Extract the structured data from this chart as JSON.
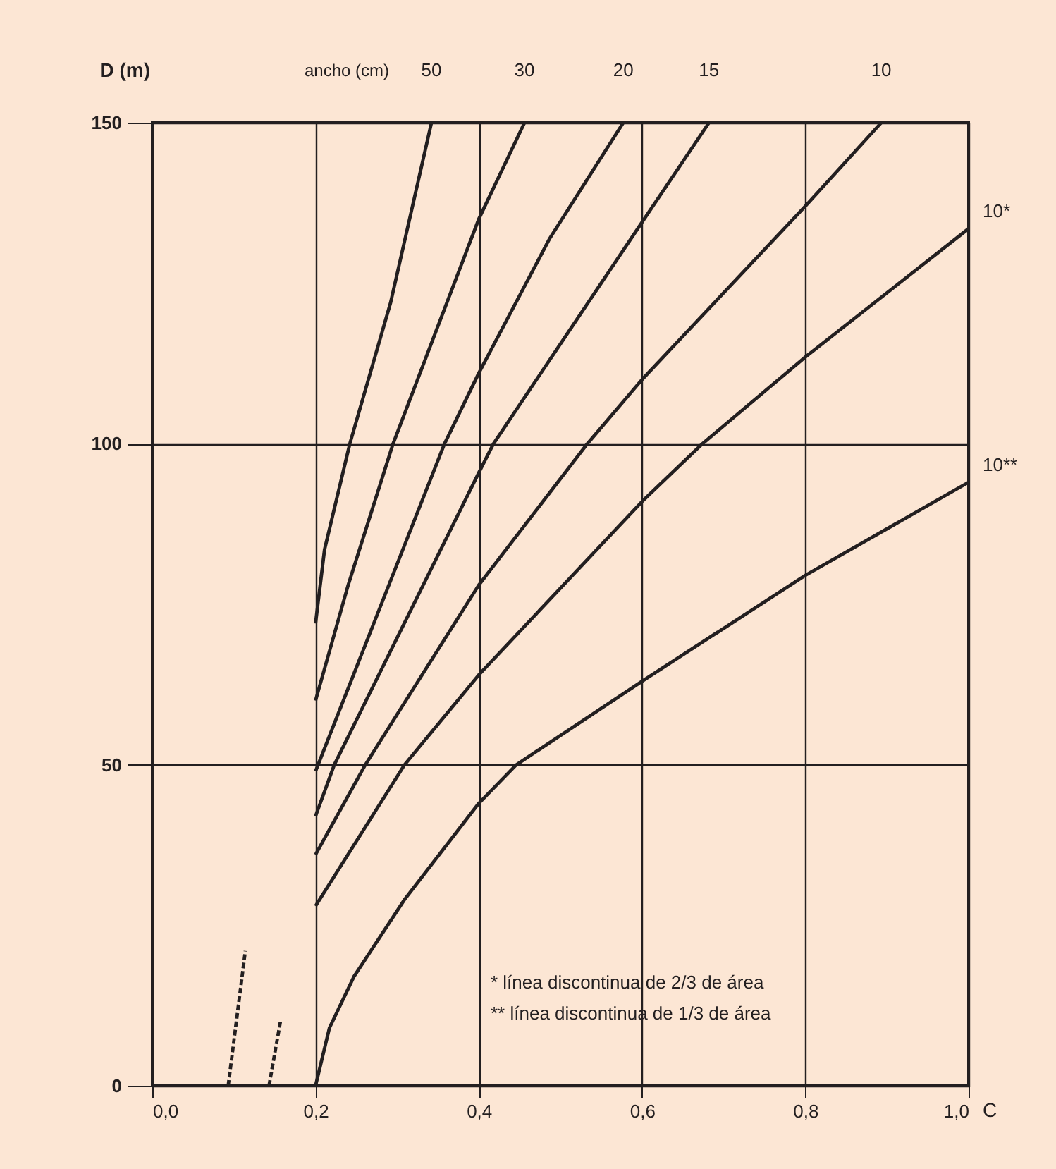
{
  "chart_data": {
    "type": "line",
    "ylabel": "D (m)",
    "xlabel": "C",
    "legend_title": "ancho (cm)",
    "xlim": [
      0,
      1.0
    ],
    "ylim": [
      0,
      150
    ],
    "xticks": [
      {
        "value": 0,
        "label": "0,0"
      },
      {
        "value": 0.2,
        "label": "0,2"
      },
      {
        "value": 0.4,
        "label": "0,4"
      },
      {
        "value": 0.6,
        "label": "0,6"
      },
      {
        "value": 0.8,
        "label": "0,8"
      },
      {
        "value": 1.0,
        "label": "1,0"
      }
    ],
    "yticks": [
      0,
      50,
      100,
      150
    ],
    "grid": true,
    "legend": false,
    "marker": "none",
    "line_style": "solid",
    "series": [
      {
        "name": "50",
        "color": "#231f20",
        "x": [
          0.2,
          0.211,
          0.242,
          0.292,
          0.342
        ],
        "values": [
          72,
          83.5,
          100,
          122,
          150
        ]
      },
      {
        "name": "30",
        "color": "#231f20",
        "x": [
          0.2,
          0.24,
          0.295,
          0.4,
          0.456
        ],
        "values": [
          60,
          78,
          100,
          135,
          150
        ]
      },
      {
        "name": "20",
        "color": "#231f20",
        "x": [
          0.2,
          0.358,
          0.4,
          0.487,
          0.577
        ],
        "values": [
          49,
          100,
          111,
          132,
          150
        ]
      },
      {
        "name": "15",
        "color": "#231f20",
        "x": [
          0.2,
          0.223,
          0.4,
          0.418,
          0.6,
          0.682
        ],
        "values": [
          42,
          50,
          95.5,
          100,
          134.5,
          150
        ]
      },
      {
        "name": "10",
        "color": "#231f20",
        "x": [
          0.2,
          0.261,
          0.4,
          0.533,
          0.6,
          0.8,
          0.893
        ],
        "values": [
          36,
          50,
          78,
          100,
          110,
          137,
          150
        ]
      },
      {
        "name": "10*",
        "color": "#231f20",
        "x": [
          0.2,
          0.309,
          0.4,
          0.6,
          0.674,
          0.8,
          1.0
        ],
        "values": [
          28,
          50,
          64,
          91,
          100,
          113.5,
          133.5
        ]
      },
      {
        "name": "10**",
        "color": "#231f20",
        "x": [
          0.2,
          0.217,
          0.247,
          0.309,
          0.4,
          0.446,
          0.6,
          0.8,
          1.0
        ],
        "values": [
          0,
          9,
          17,
          29,
          44,
          50,
          63,
          79.5,
          94
        ]
      },
      {
        "color": "#231f20",
        "line_style": "dashed",
        "x": [
          0.093,
          0.114
        ],
        "values": [
          0,
          21
        ]
      },
      {
        "color": "#231f20",
        "line_style": "dashed",
        "x": [
          0.143,
          0.157
        ],
        "values": [
          0,
          10
        ]
      }
    ],
    "annotations": [
      "* línea discontinua de 2/3 de área",
      "** línea discontinua de 1/3 de área"
    ]
  }
}
